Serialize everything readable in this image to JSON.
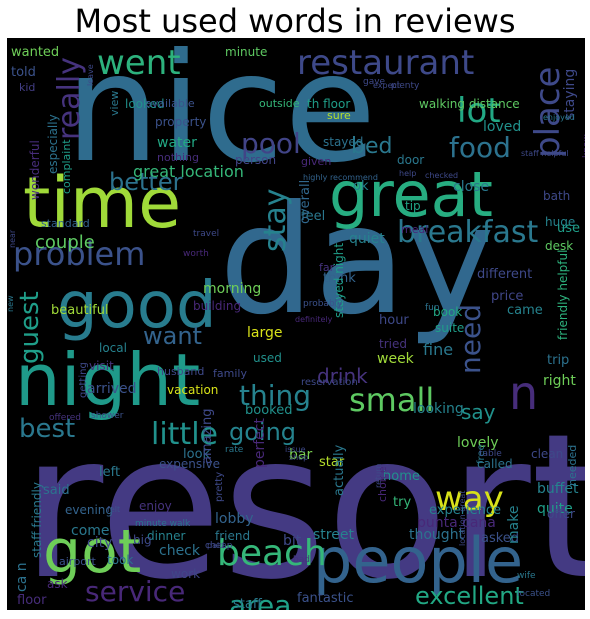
{
  "title": "Most used words in reviews",
  "words": [
    {
      "text": "resort",
      "color": "#443a83"
    },
    {
      "text": "day",
      "color": "#31688e"
    },
    {
      "text": "nice",
      "color": "#2f6c8e"
    },
    {
      "text": "time",
      "color": "#a0da39"
    },
    {
      "text": "great",
      "color": "#27ad81"
    },
    {
      "text": "night",
      "color": "#1f9a8a"
    },
    {
      "text": "good",
      "color": "#287c8e"
    },
    {
      "text": "people",
      "color": "#33638d"
    },
    {
      "text": "got",
      "color": "#6ece58"
    },
    {
      "text": "restaurant",
      "color": "#3e4989"
    },
    {
      "text": "went",
      "color": "#2db27d"
    },
    {
      "text": "beach",
      "color": "#35b779"
    },
    {
      "text": "breakfast",
      "color": "#2a788e"
    },
    {
      "text": "problem",
      "color": "#3b528b"
    },
    {
      "text": "food",
      "color": "#2c728e"
    },
    {
      "text": "lot",
      "color": "#22a884"
    },
    {
      "text": "place",
      "color": "#3e4989"
    },
    {
      "text": "small",
      "color": "#5ec962"
    },
    {
      "text": "thing",
      "color": "#26828e"
    },
    {
      "text": "way",
      "color": "#d8e219"
    },
    {
      "text": "little",
      "color": "#21918c"
    },
    {
      "text": "best",
      "color": "#2a788e"
    },
    {
      "text": "want",
      "color": "#33638d"
    },
    {
      "text": "pool",
      "color": "#414487"
    },
    {
      "text": "really",
      "color": "#46337e"
    },
    {
      "text": "better",
      "color": "#2c728e"
    },
    {
      "text": "stay",
      "color": "#26828e"
    },
    {
      "text": "guest",
      "color": "#1f9e89"
    },
    {
      "text": "service",
      "color": "#482878"
    },
    {
      "text": "excellent",
      "color": "#22a884"
    },
    {
      "text": "area",
      "color": "#1fa187"
    },
    {
      "text": "n",
      "color": "#472d7b"
    },
    {
      "text": "need",
      "color": "#3b528b"
    },
    {
      "text": "going",
      "color": "#25838e"
    },
    {
      "text": "say",
      "color": "#21918c"
    },
    {
      "text": "drink",
      "color": "#46337e"
    },
    {
      "text": "bed",
      "color": "#2a788e"
    },
    {
      "text": "great location",
      "color": "#35b779"
    },
    {
      "text": "wanted",
      "color": "#6ece58"
    },
    {
      "text": "minute",
      "color": "#5ec962"
    },
    {
      "text": "told",
      "color": "#3b528b"
    },
    {
      "text": "kid",
      "color": "#433e85"
    },
    {
      "text": "looked",
      "color": "#21918c"
    },
    {
      "text": "available",
      "color": "#3b528b"
    },
    {
      "text": "outside",
      "color": "#35b779"
    },
    {
      "text": "th floor",
      "color": "#1f9e89"
    },
    {
      "text": "walking distance",
      "color": "#5ec962"
    },
    {
      "text": "staying",
      "color": "#3e4989"
    },
    {
      "text": "loved",
      "color": "#21918c"
    },
    {
      "text": "property",
      "color": "#3b528b"
    },
    {
      "text": "water",
      "color": "#22a884"
    },
    {
      "text": "nothing",
      "color": "#472d7b"
    },
    {
      "text": "stayed",
      "color": "#2c728e"
    },
    {
      "text": "given",
      "color": "#482878"
    },
    {
      "text": "person",
      "color": "#414487"
    },
    {
      "text": "door",
      "color": "#2a788e"
    },
    {
      "text": "ok",
      "color": "#25838e"
    },
    {
      "text": "close",
      "color": "#2a788e"
    },
    {
      "text": "bath",
      "color": "#3e4989"
    },
    {
      "text": "huge",
      "color": "#25838e"
    },
    {
      "text": "wonderful",
      "color": "#472d7b"
    },
    {
      "text": "especially",
      "color": "#2c728e"
    },
    {
      "text": "complaint",
      "color": "#1f9e89"
    },
    {
      "text": "standard",
      "color": "#33638d"
    },
    {
      "text": "couple",
      "color": "#5ec962"
    },
    {
      "text": "feel",
      "color": "#2a788e"
    },
    {
      "text": "overall",
      "color": "#31688e"
    },
    {
      "text": "tip",
      "color": "#20a386"
    },
    {
      "text": "use",
      "color": "#1f9e89"
    },
    {
      "text": "desk",
      "color": "#5ec962"
    },
    {
      "text": "meal",
      "color": "#482878"
    },
    {
      "text": "quiet",
      "color": "#26828e"
    },
    {
      "text": "think",
      "color": "#33638d"
    },
    {
      "text": "far",
      "color": "#46337e"
    },
    {
      "text": "morning",
      "color": "#6ece58"
    },
    {
      "text": "different",
      "color": "#3e4989"
    },
    {
      "text": "building",
      "color": "#482878"
    },
    {
      "text": "beautiful",
      "color": "#a0da39"
    },
    {
      "text": "price",
      "color": "#404688"
    },
    {
      "text": "came",
      "color": "#25838e"
    },
    {
      "text": "book",
      "color": "#22a884"
    },
    {
      "text": "suite",
      "color": "#1f9e89"
    },
    {
      "text": "hour",
      "color": "#3e4989"
    },
    {
      "text": "large",
      "color": "#d8e219"
    },
    {
      "text": "stayed night",
      "color": "#1f9e89"
    },
    {
      "text": "fine",
      "color": "#2a788e"
    },
    {
      "text": "week",
      "color": "#a0da39"
    },
    {
      "text": "trip",
      "color": "#2c728e"
    },
    {
      "text": "right",
      "color": "#6ece58"
    },
    {
      "text": "used",
      "color": "#21918c"
    },
    {
      "text": "visit",
      "color": "#46337e"
    },
    {
      "text": "local",
      "color": "#26828e"
    },
    {
      "text": "arrived",
      "color": "#3b528b"
    },
    {
      "text": "vacation",
      "color": "#d8e219"
    },
    {
      "text": "husband",
      "color": "#3e4989"
    },
    {
      "text": "family",
      "color": "#3e4989"
    },
    {
      "text": "booked",
      "color": "#21918c"
    },
    {
      "text": "looking",
      "color": "#25838e"
    },
    {
      "text": "lovely",
      "color": "#6ece58"
    },
    {
      "text": "look",
      "color": "#2c728e"
    },
    {
      "text": "expensive",
      "color": "#3b528b"
    },
    {
      "text": "left",
      "color": "#2a788e"
    },
    {
      "text": "bar",
      "color": "#7ad151"
    },
    {
      "text": "star",
      "color": "#b5de2b"
    },
    {
      "text": "home",
      "color": "#21918c"
    },
    {
      "text": "clean",
      "color": "#3e4989"
    },
    {
      "text": "called",
      "color": "#2c728e"
    },
    {
      "text": "experience",
      "color": "#26828e"
    },
    {
      "text": "buffet",
      "color": "#25838e"
    },
    {
      "text": "quite",
      "color": "#1f9e89"
    },
    {
      "text": "enjoy",
      "color": "#46337e"
    },
    {
      "text": "amazing",
      "color": "#3e4989"
    },
    {
      "text": "perfect",
      "color": "#482878"
    },
    {
      "text": "actually",
      "color": "#2a788e"
    },
    {
      "text": "choice",
      "color": "#482878"
    },
    {
      "text": "try",
      "color": "#35b779"
    },
    {
      "text": "lobby",
      "color": "#33638d"
    },
    {
      "text": "come",
      "color": "#2a788e"
    },
    {
      "text": "evening",
      "color": "#33638d"
    },
    {
      "text": "city",
      "color": "#3e4989"
    },
    {
      "text": "dinner",
      "color": "#26828e"
    },
    {
      "text": "took",
      "color": "#2c728e"
    },
    {
      "text": "offer",
      "color": "#3e4989"
    },
    {
      "text": "punta cana",
      "color": "#482878"
    },
    {
      "text": "thought",
      "color": "#2c728e"
    },
    {
      "text": "asked",
      "color": "#3b528b"
    },
    {
      "text": "street",
      "color": "#26828e"
    },
    {
      "text": "bit",
      "color": "#3e4989"
    },
    {
      "text": "make",
      "color": "#26828e"
    },
    {
      "text": "check",
      "color": "#2c728e"
    },
    {
      "text": "big",
      "color": "#3e4989"
    },
    {
      "text": "friend",
      "color": "#2a788e"
    },
    {
      "text": "work",
      "color": "#404688"
    },
    {
      "text": "floor",
      "color": "#472d7b"
    },
    {
      "text": "staff",
      "color": "#2a788e"
    },
    {
      "text": "fantastic",
      "color": "#3b528b"
    },
    {
      "text": "said",
      "color": "#2c728e"
    },
    {
      "text": "ca n",
      "color": "#2c728e"
    },
    {
      "text": "staff friendly",
      "color": "#2a788e"
    },
    {
      "text": "airport",
      "color": "#3b528b"
    },
    {
      "text": "ask",
      "color": "#482878"
    },
    {
      "text": "needed",
      "color": "#2c728e"
    },
    {
      "text": "friendly helpful",
      "color": "#2db27d"
    },
    {
      "text": "pretty",
      "color": "#3e4989"
    },
    {
      "text": "reservation",
      "color": "#3e4989"
    },
    {
      "text": "fun",
      "color": "#2c728e"
    },
    {
      "text": "tried",
      "color": "#46337e"
    },
    {
      "text": "sure",
      "color": "#b5de2b"
    },
    {
      "text": "know",
      "color": "#482878"
    },
    {
      "text": "view",
      "color": "#2a788e"
    },
    {
      "text": "minute walk",
      "color": "#2c728e"
    },
    {
      "text": "bad",
      "color": "#46337e"
    },
    {
      "text": "wife",
      "color": "#2a788e"
    },
    {
      "text": "located",
      "color": "#3b528b"
    },
    {
      "text": "worth",
      "color": "#482878"
    },
    {
      "text": "travel",
      "color": "#3e4989"
    },
    {
      "text": "highly recommend",
      "color": "#33638d"
    },
    {
      "text": "getting",
      "color": "#3e4989"
    },
    {
      "text": "probably",
      "color": "#3b528b"
    },
    {
      "text": "definitely",
      "color": "#482878"
    },
    {
      "text": "shower",
      "color": "#3b528b"
    },
    {
      "text": "offered",
      "color": "#46337e"
    },
    {
      "text": "rate",
      "color": "#2a788e"
    },
    {
      "text": "issue",
      "color": "#3e4989"
    },
    {
      "text": "free",
      "color": "#2a788e"
    },
    {
      "text": "table",
      "color": "#3e4989"
    },
    {
      "text": "felt",
      "color": "#3b528b"
    },
    {
      "text": "cheap",
      "color": "#3e4989"
    },
    {
      "text": "plenty",
      "color": "#3e4989"
    },
    {
      "text": "gave",
      "color": "#3e4989"
    },
    {
      "text": "leave",
      "color": "#3e4989"
    },
    {
      "text": "help",
      "color": "#3e4989"
    },
    {
      "text": "enjoyed",
      "color": "#2a788e"
    },
    {
      "text": "checked",
      "color": "#3e4989"
    },
    {
      "text": "near",
      "color": "#3e4989"
    },
    {
      "text": "new",
      "color": "#2a788e"
    },
    {
      "text": "return",
      "color": "#3e4989"
    },
    {
      "text": "location great",
      "color": "#3e4989"
    },
    {
      "text": "away",
      "color": "#3e4989"
    },
    {
      "text": "paid",
      "color": "#3e4989"
    },
    {
      "text": "expect",
      "color": "#3e4989"
    },
    {
      "text": "shop",
      "color": "#3e4989"
    },
    {
      "text": "staff helpful",
      "color": "#3e4989"
    },
    {
      "text": "plu",
      "color": "#3e4989"
    },
    {
      "text": "eat",
      "color": "#3e4989"
    },
    {
      "text": "pay",
      "color": "#3e4989"
    },
    {
      "text": "nightly",
      "color": "#3e4989"
    }
  ]
}
